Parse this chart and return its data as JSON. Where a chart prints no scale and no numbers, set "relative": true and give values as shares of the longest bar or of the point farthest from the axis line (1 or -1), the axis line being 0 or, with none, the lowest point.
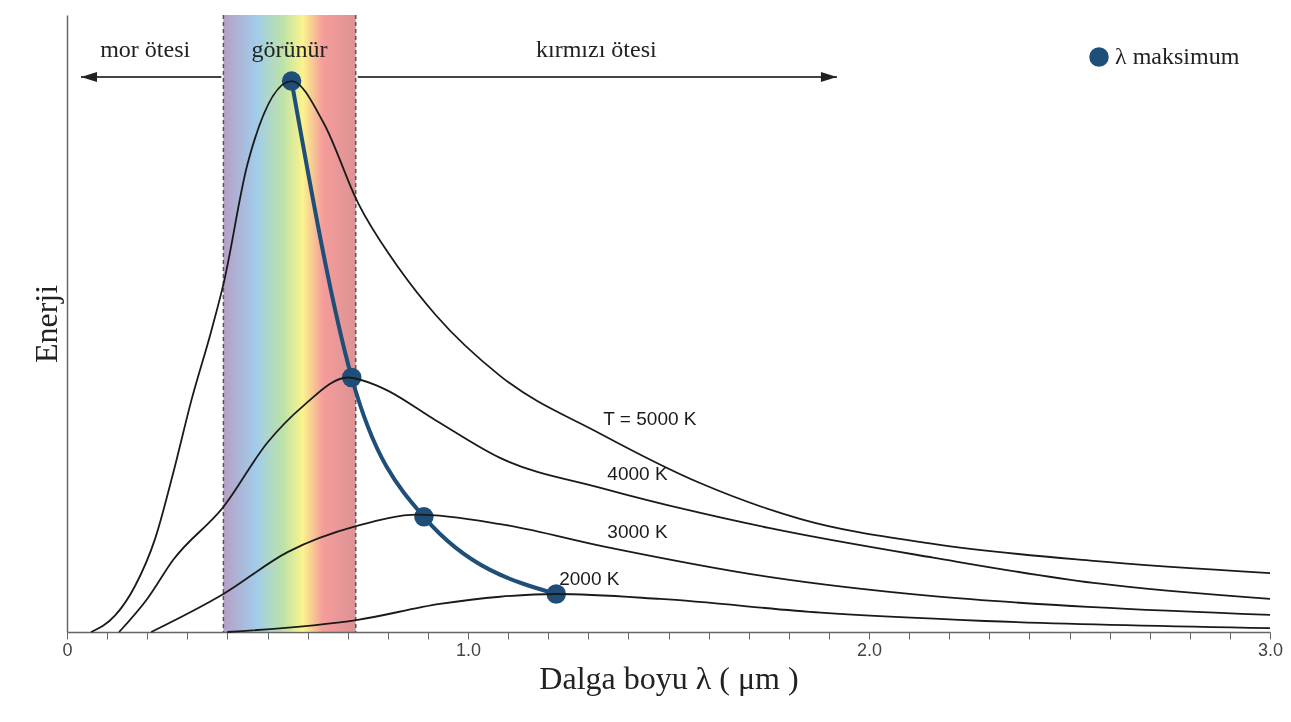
{
  "chart_data": {
    "type": "line",
    "relative": true,
    "xlabel": "Dalga boyu λ ( μm )",
    "ylabel": "Enerji",
    "xlim": [
      0,
      3
    ],
    "xticks": [
      0,
      {
        "value": 0.1,
        "label": null
      },
      {
        "value": 0.2,
        "label": null
      },
      {
        "value": 0.3,
        "label": null
      },
      {
        "value": 0.4,
        "label": null
      },
      {
        "value": 0.5,
        "label": null
      },
      {
        "value": 0.6,
        "label": null
      },
      {
        "value": 0.7,
        "label": null
      },
      {
        "value": 0.8,
        "label": null
      },
      {
        "value": 0.9,
        "label": null
      },
      {
        "value": 1,
        "label": "1.0"
      },
      {
        "value": 1.1,
        "label": null
      },
      {
        "value": 1.2,
        "label": null
      },
      {
        "value": 1.3,
        "label": null
      },
      {
        "value": 1.4,
        "label": null
      },
      {
        "value": 1.5,
        "label": null
      },
      {
        "value": 1.6,
        "label": null
      },
      {
        "value": 1.7,
        "label": null
      },
      {
        "value": 1.8,
        "label": null
      },
      {
        "value": 1.9,
        "label": null
      },
      {
        "value": 2,
        "label": "2.0"
      },
      {
        "value": 2.1,
        "label": null
      },
      {
        "value": 2.2,
        "label": null
      },
      {
        "value": 2.3,
        "label": null
      },
      {
        "value": 2.4,
        "label": null
      },
      {
        "value": 2.5,
        "label": null
      },
      {
        "value": 2.6,
        "label": null
      },
      {
        "value": 2.7,
        "label": null
      },
      {
        "value": 2.8,
        "label": null
      },
      {
        "value": 2.9,
        "label": null
      },
      {
        "value": 3,
        "label": "3.0"
      }
    ],
    "series": [
      {
        "name": "T = 5000 K",
        "color": "#1a1a1a",
        "x": [
          0.06,
          0.12,
          0.17,
          0.22,
          0.265,
          0.31,
          0.36,
          0.39,
          0.45,
          0.56,
          0.64,
          0.725,
          0.83,
          0.92,
          1.08,
          1.33,
          1.58,
          1.83,
          2.16,
          2.56,
          3.0
        ],
        "values": [
          0,
          0.03,
          0.084,
          0.17,
          0.289,
          0.42,
          0.547,
          0.631,
          0.849,
          1,
          0.924,
          0.78,
          0.658,
          0.575,
          0.465,
          0.36,
          0.27,
          0.205,
          0.16,
          0.129,
          0.107
        ]
      },
      {
        "name": "4000 K",
        "color": "#1a1a1a",
        "x": [
          0.13,
          0.2,
          0.265,
          0.39,
          0.5,
          0.59,
          0.7,
          0.78,
          0.92,
          1.08,
          1.34,
          1.75,
          2.16,
          2.56,
          3.0
        ],
        "values": [
          0,
          0.06,
          0.131,
          0.227,
          0.344,
          0.411,
          0.462,
          0.445,
          0.384,
          0.316,
          0.26,
          0.189,
          0.135,
          0.089,
          0.06
        ]
      },
      {
        "name": "3000 K",
        "color": "#1a1a1a",
        "x": [
          0.21,
          0.39,
          0.55,
          0.725,
          0.875,
          1.08,
          1.34,
          1.75,
          2.16,
          2.56,
          3.0
        ],
        "values": [
          0,
          0.069,
          0.145,
          0.193,
          0.213,
          0.196,
          0.155,
          0.1,
          0.065,
          0.045,
          0.031
        ]
      },
      {
        "name": "2000 K",
        "color": "#1a1a1a",
        "x": [
          0.4,
          0.725,
          0.93,
          1.08,
          1.22,
          1.48,
          1.88,
          2.29,
          3.0
        ],
        "values": [
          0,
          0.022,
          0.051,
          0.064,
          0.069,
          0.06,
          0.035,
          0.02,
          0.007
        ]
      },
      {
        "name": "λ maksimum",
        "color": "#1f4e79",
        "marker": "circle",
        "x": [
          0.56,
          0.71,
          0.89,
          1.22
        ],
        "values": [
          1,
          0.462,
          0.209,
          0.069
        ]
      }
    ],
    "bands": [
      {
        "axis": "x",
        "from": 0.39,
        "to": 0.72,
        "label": "görünür"
      }
    ],
    "annotations": [
      "mor ötesi",
      "kırmızı ötesi"
    ],
    "legend": "top right"
  }
}
